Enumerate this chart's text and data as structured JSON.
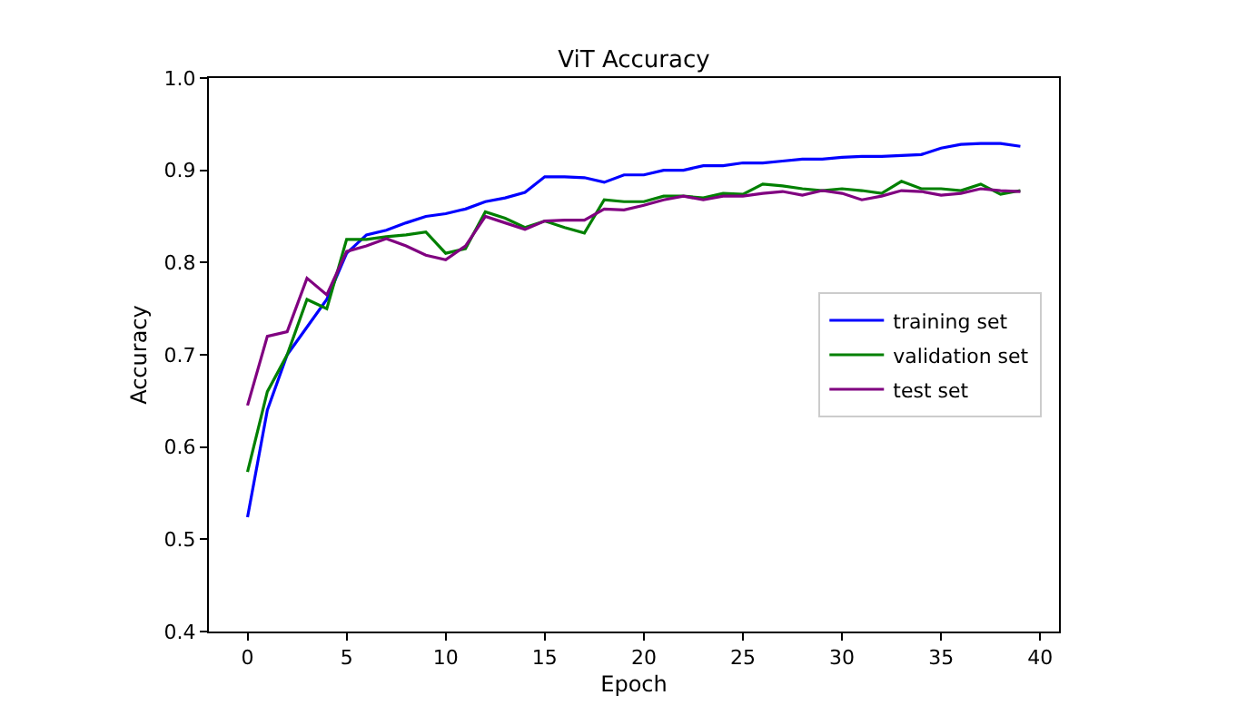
{
  "chart_data": {
    "type": "line",
    "title": "ViT Accuracy",
    "xlabel": "Epoch",
    "ylabel": "Accuracy",
    "x": [
      0,
      1,
      2,
      3,
      4,
      5,
      6,
      7,
      8,
      9,
      10,
      11,
      12,
      13,
      14,
      15,
      16,
      17,
      18,
      19,
      20,
      21,
      22,
      23,
      24,
      25,
      26,
      27,
      28,
      29,
      30,
      31,
      32,
      33,
      34,
      35,
      36,
      37,
      38,
      39
    ],
    "xlim": [
      -1.95,
      40.95
    ],
    "xticks": [
      0,
      5,
      10,
      15,
      20,
      25,
      30,
      35,
      40
    ],
    "ylim": [
      0.4,
      1.0
    ],
    "yticks": [
      {
        "value": 0.4,
        "label": "0.4"
      },
      {
        "value": 0.5,
        "label": "0.5"
      },
      {
        "value": 0.6,
        "label": "0.6"
      },
      {
        "value": 0.7,
        "label": "0.7"
      },
      {
        "value": 0.8,
        "label": "0.8"
      },
      {
        "value": 0.9,
        "label": "0.9"
      },
      {
        "value": 1.0,
        "label": "1.0"
      }
    ],
    "legend": "right",
    "marker": "none",
    "line_style": "solid",
    "series": [
      {
        "name": "training set",
        "color": "#0000ff",
        "values": [
          0.524,
          0.64,
          0.7,
          0.73,
          0.76,
          0.81,
          0.83,
          0.835,
          0.843,
          0.85,
          0.853,
          0.858,
          0.866,
          0.87,
          0.876,
          0.893,
          0.893,
          0.892,
          0.887,
          0.895,
          0.895,
          0.9,
          0.9,
          0.905,
          0.905,
          0.908,
          0.908,
          0.91,
          0.912,
          0.912,
          0.914,
          0.915,
          0.915,
          0.916,
          0.917,
          0.924,
          0.928,
          0.929,
          0.929,
          0.926
        ]
      },
      {
        "name": "validation set",
        "color": "#008000",
        "values": [
          0.573,
          0.66,
          0.7,
          0.76,
          0.75,
          0.825,
          0.825,
          0.828,
          0.83,
          0.833,
          0.81,
          0.815,
          0.855,
          0.848,
          0.838,
          0.845,
          0.838,
          0.832,
          0.868,
          0.866,
          0.866,
          0.872,
          0.872,
          0.87,
          0.875,
          0.874,
          0.885,
          0.883,
          0.88,
          0.878,
          0.88,
          0.878,
          0.875,
          0.888,
          0.88,
          0.88,
          0.878,
          0.885,
          0.874,
          0.878
        ]
      },
      {
        "name": "test set",
        "color": "#800080",
        "values": [
          0.645,
          0.72,
          0.725,
          0.783,
          0.765,
          0.812,
          0.818,
          0.826,
          0.818,
          0.808,
          0.803,
          0.818,
          0.85,
          0.843,
          0.836,
          0.845,
          0.846,
          0.846,
          0.858,
          0.857,
          0.862,
          0.868,
          0.872,
          0.868,
          0.872,
          0.872,
          0.875,
          0.877,
          0.873,
          0.878,
          0.875,
          0.868,
          0.872,
          0.878,
          0.877,
          0.873,
          0.875,
          0.88,
          0.878,
          0.877
        ]
      }
    ]
  }
}
